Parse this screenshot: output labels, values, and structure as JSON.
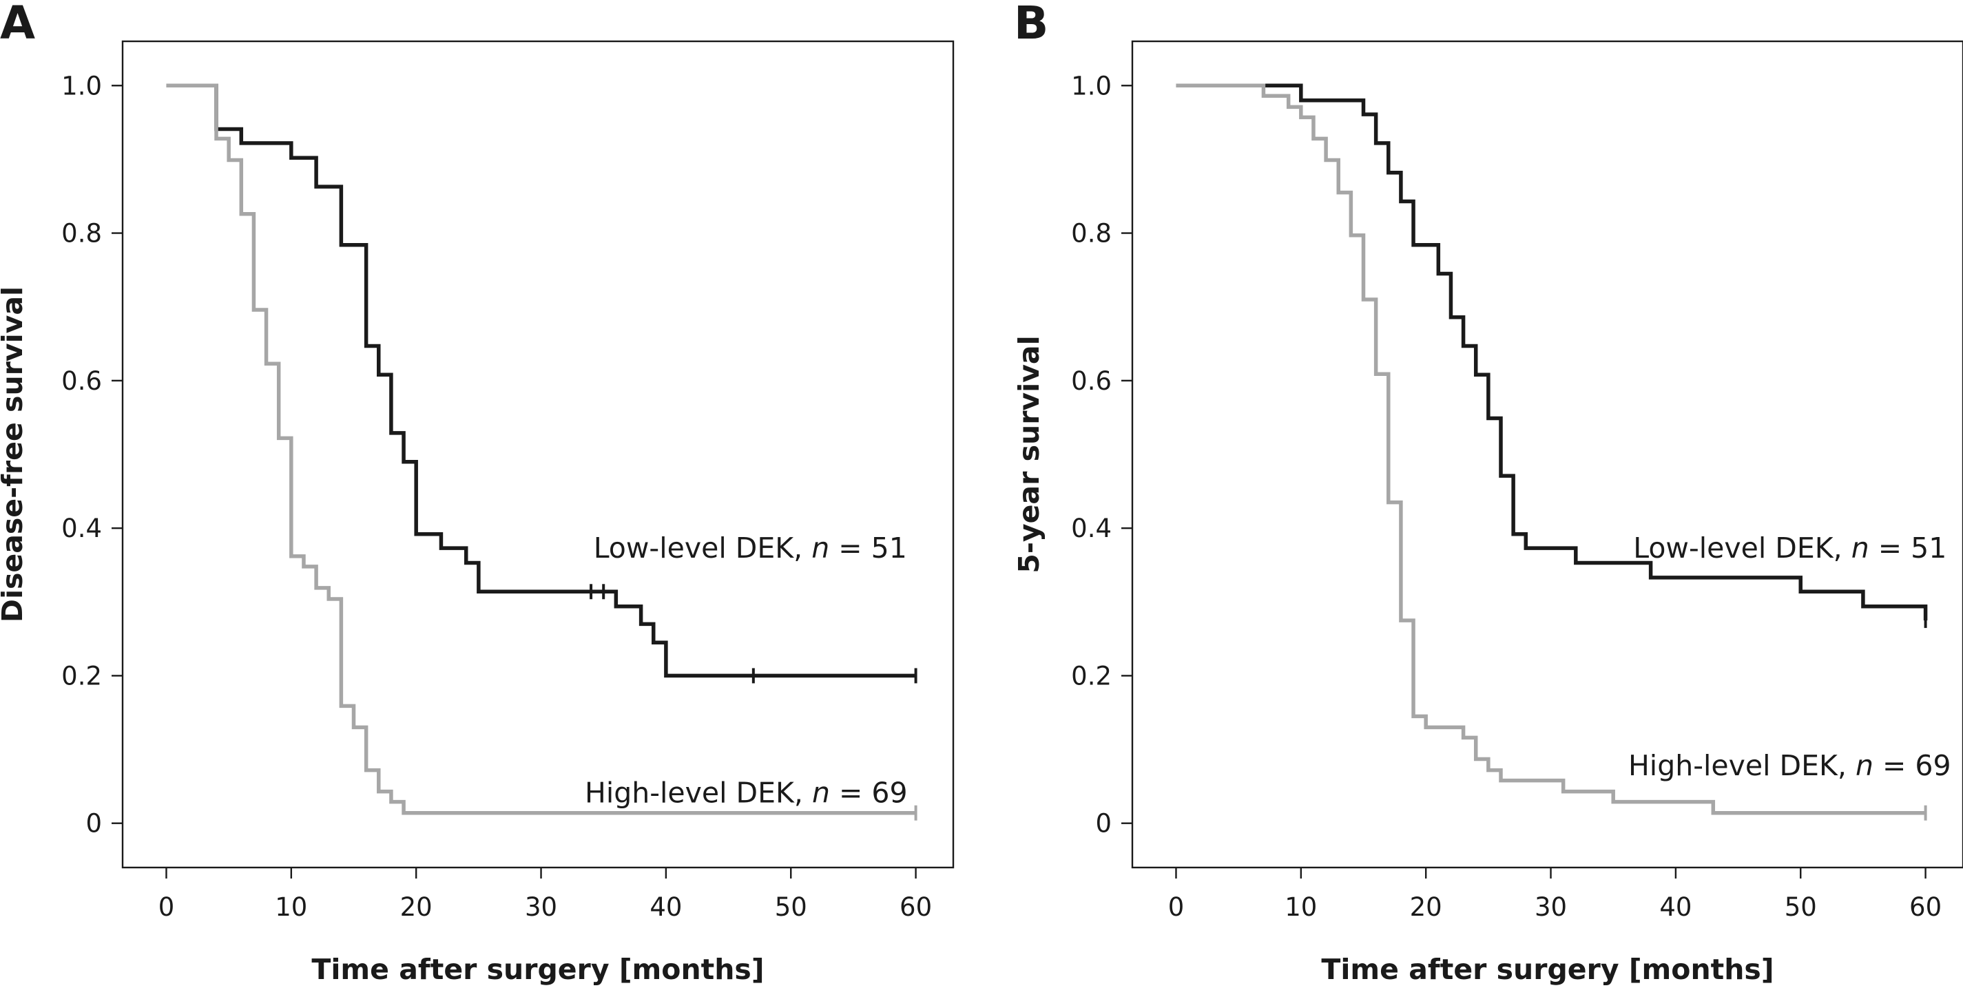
{
  "chart_data": [
    {
      "type": "line",
      "step": true,
      "panel_label": "A",
      "title": "",
      "xlabel": "Time after surgery [months]",
      "ylabel": "Disease-free survival",
      "xlim": [
        -3.5,
        63
      ],
      "ylim": [
        -0.06,
        1.06
      ],
      "x_ticks": [
        0,
        10,
        20,
        30,
        40,
        50,
        60
      ],
      "y_ticks": [
        0,
        0.2,
        0.4,
        0.6,
        0.8,
        1.0
      ],
      "y_tick_labels": [
        "0",
        "0.2",
        "0.4",
        "0.6",
        "0.8",
        "1.0"
      ],
      "grid": false,
      "series": [
        {
          "name_prefix": "Low-level DEK, ",
          "name_italic": "n",
          "name_suffix": " = 51",
          "color": "#1a1a1a",
          "label_pos": [
            34.2,
            0.36
          ],
          "x": [
            0,
            4,
            6,
            10,
            12,
            14,
            16,
            17,
            18,
            19,
            20,
            22,
            24,
            25,
            34,
            35,
            36,
            38,
            39,
            40,
            47,
            60
          ],
          "y": [
            1.0,
            0.941,
            0.922,
            0.902,
            0.863,
            0.784,
            0.647,
            0.608,
            0.529,
            0.49,
            0.392,
            0.373,
            0.353,
            0.314,
            0.314,
            0.314,
            0.294,
            0.27,
            0.245,
            0.2,
            0.2,
            0.2
          ],
          "censored": [
            [
              34,
              0.314
            ],
            [
              35,
              0.314
            ],
            [
              47,
              0.2
            ],
            [
              60,
              0.2
            ]
          ]
        },
        {
          "name_prefix": "High-level DEK, ",
          "name_italic": "n",
          "name_suffix": " = 69",
          "color": "#a6a6a6",
          "label_pos": [
            33.5,
            0.028
          ],
          "x": [
            0,
            4,
            5,
            6,
            7,
            8,
            9,
            10,
            11,
            12,
            13,
            14,
            15,
            16,
            17,
            18,
            19,
            60
          ],
          "y": [
            1.0,
            0.928,
            0.899,
            0.826,
            0.696,
            0.623,
            0.522,
            0.362,
            0.348,
            0.319,
            0.304,
            0.159,
            0.13,
            0.072,
            0.043,
            0.029,
            0.014,
            0.014
          ],
          "censored": [
            [
              60,
              0.014
            ]
          ]
        }
      ]
    },
    {
      "type": "line",
      "step": true,
      "panel_label": "B",
      "title": "",
      "xlabel": "Time after surgery [months]",
      "ylabel": "5-year survival",
      "xlim": [
        -3.5,
        63
      ],
      "ylim": [
        -0.06,
        1.06
      ],
      "x_ticks": [
        0,
        10,
        20,
        30,
        40,
        50,
        60
      ],
      "y_ticks": [
        0,
        0.2,
        0.4,
        0.6,
        0.8,
        1.0
      ],
      "y_tick_labels": [
        "0",
        "0.2",
        "0.4",
        "0.6",
        "0.8",
        "1.0"
      ],
      "grid": false,
      "series": [
        {
          "name_prefix": "Low-level DEK, ",
          "name_italic": "n",
          "name_suffix": " = 51",
          "color": "#1a1a1a",
          "label_pos": [
            36.6,
            0.36
          ],
          "x": [
            0,
            7,
            10,
            15,
            16,
            17,
            18,
            19,
            21,
            22,
            23,
            24,
            25,
            26,
            27,
            28,
            32,
            38,
            50,
            55,
            60
          ],
          "y": [
            1.0,
            1.0,
            0.98,
            0.961,
            0.922,
            0.882,
            0.843,
            0.784,
            0.745,
            0.686,
            0.647,
            0.608,
            0.549,
            0.471,
            0.392,
            0.373,
            0.353,
            0.333,
            0.314,
            0.294,
            0.275
          ],
          "censored": [
            [
              60,
              0.275
            ]
          ]
        },
        {
          "name_prefix": "High-level DEK, ",
          "name_italic": "n",
          "name_suffix": " = 69",
          "color": "#a6a6a6",
          "label_pos": [
            36.2,
            0.065
          ],
          "x": [
            0,
            7,
            9,
            10,
            11,
            12,
            13,
            14,
            15,
            16,
            17,
            18,
            19,
            20,
            23,
            24,
            25,
            26,
            31,
            35,
            43,
            60
          ],
          "y": [
            1.0,
            0.986,
            0.971,
            0.957,
            0.928,
            0.899,
            0.855,
            0.797,
            0.71,
            0.609,
            0.435,
            0.275,
            0.145,
            0.13,
            0.116,
            0.087,
            0.072,
            0.058,
            0.043,
            0.029,
            0.014,
            0.014
          ],
          "censored": [
            [
              60,
              0.014
            ]
          ]
        }
      ]
    }
  ]
}
